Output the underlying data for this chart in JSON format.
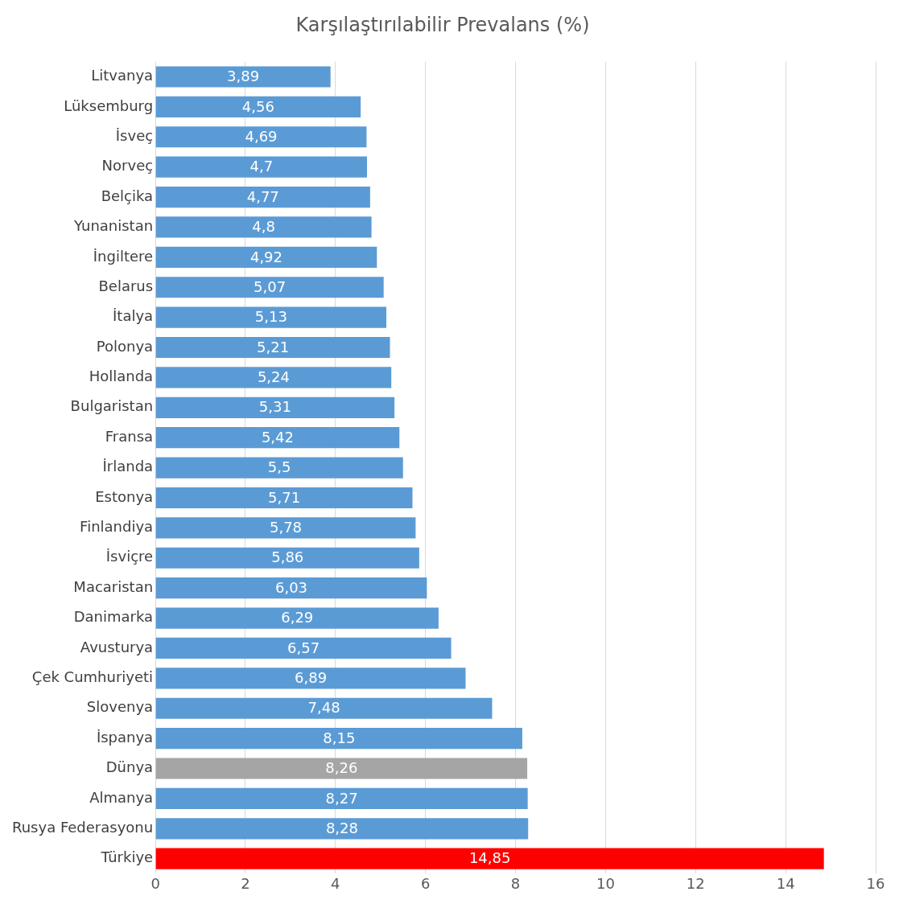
{
  "chart_data": {
    "type": "bar",
    "orientation": "horizontal",
    "title": "Karşılaştırılabilir Prevalans (%)",
    "categories": [
      "Litvanya",
      "Lüksemburg",
      "İsveç",
      "Norveç",
      "Belçika",
      "Yunanistan",
      "İngiltere",
      "Belarus",
      "İtalya",
      "Polonya",
      "Hollanda",
      "Bulgaristan",
      "Fransa",
      "İrlanda",
      "Estonya",
      "Finlandiya",
      "İsviçre",
      "Macaristan",
      "Danimarka",
      "Avusturya",
      "Çek Cumhuriyeti",
      "Slovenya",
      "İspanya",
      "Dünya",
      "Almanya",
      "Rusya Federasyonu",
      "Türkiye"
    ],
    "values": [
      3.89,
      4.56,
      4.69,
      4.7,
      4.77,
      4.8,
      4.92,
      5.07,
      5.13,
      5.21,
      5.24,
      5.31,
      5.42,
      5.5,
      5.71,
      5.78,
      5.86,
      6.03,
      6.29,
      6.57,
      6.89,
      7.48,
      8.15,
      8.26,
      8.27,
      8.28,
      14.85
    ],
    "value_labels": [
      "3,89",
      "4,56",
      "4,69",
      "4,7",
      "4,77",
      "4,8",
      "4,92",
      "5,07",
      "5,13",
      "5,21",
      "5,24",
      "5,31",
      "5,42",
      "5,5",
      "5,71",
      "5,78",
      "5,86",
      "6,03",
      "6,29",
      "6,57",
      "6,89",
      "7,48",
      "8,15",
      "8,26",
      "8,27",
      "8,28",
      "14,85"
    ],
    "colors": [
      "#5b9bd5",
      "#5b9bd5",
      "#5b9bd5",
      "#5b9bd5",
      "#5b9bd5",
      "#5b9bd5",
      "#5b9bd5",
      "#5b9bd5",
      "#5b9bd5",
      "#5b9bd5",
      "#5b9bd5",
      "#5b9bd5",
      "#5b9bd5",
      "#5b9bd5",
      "#5b9bd5",
      "#5b9bd5",
      "#5b9bd5",
      "#5b9bd5",
      "#5b9bd5",
      "#5b9bd5",
      "#5b9bd5",
      "#5b9bd5",
      "#5b9bd5",
      "#a5a5a5",
      "#5b9bd5",
      "#5b9bd5",
      "#ff0000"
    ],
    "xlim": [
      0,
      16
    ],
    "xticks": [
      0,
      2,
      4,
      6,
      8,
      10,
      12,
      14,
      16
    ],
    "grid": "x",
    "legend": false
  }
}
